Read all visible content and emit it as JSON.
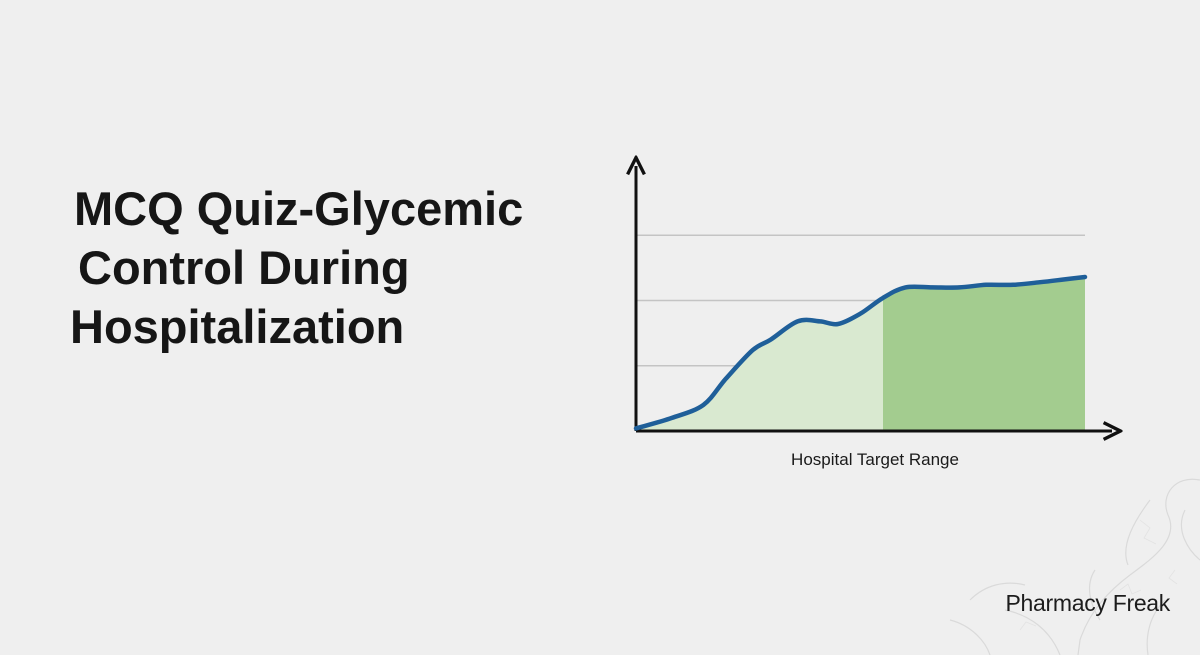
{
  "title_lines": [
    "MCQ Quiz-Glycemic",
    "Control During",
    "Hospitalization"
  ],
  "brand": "Pharmacy Freak",
  "colors": {
    "background": "#efefef",
    "title": "#161616",
    "line": "#1f5f99",
    "area_light": "#d9e9d0",
    "area_target": "#a3cc8f",
    "axis": "#111111",
    "grid": "#c4c4c4"
  },
  "chart_data": {
    "type": "area",
    "title": "",
    "xlabel": "Hospital Target Range",
    "ylabel": "",
    "xlim": [
      0,
      100
    ],
    "ylim": [
      0,
      100
    ],
    "grid": "horizontal",
    "gridlines": [
      25,
      50,
      75
    ],
    "target_region": {
      "x_start": 55,
      "x_end": 100
    },
    "series": [
      {
        "x": [
          0,
          8,
          15,
          20,
          26,
          30,
          36,
          41,
          45,
          50,
          55,
          60,
          66,
          72,
          78,
          84,
          90,
          95,
          100
        ],
        "values": [
          1,
          5,
          10,
          20,
          31,
          35,
          42,
          42,
          41,
          45,
          51,
          55,
          55,
          55,
          56,
          56,
          57,
          58,
          59
        ]
      }
    ]
  }
}
